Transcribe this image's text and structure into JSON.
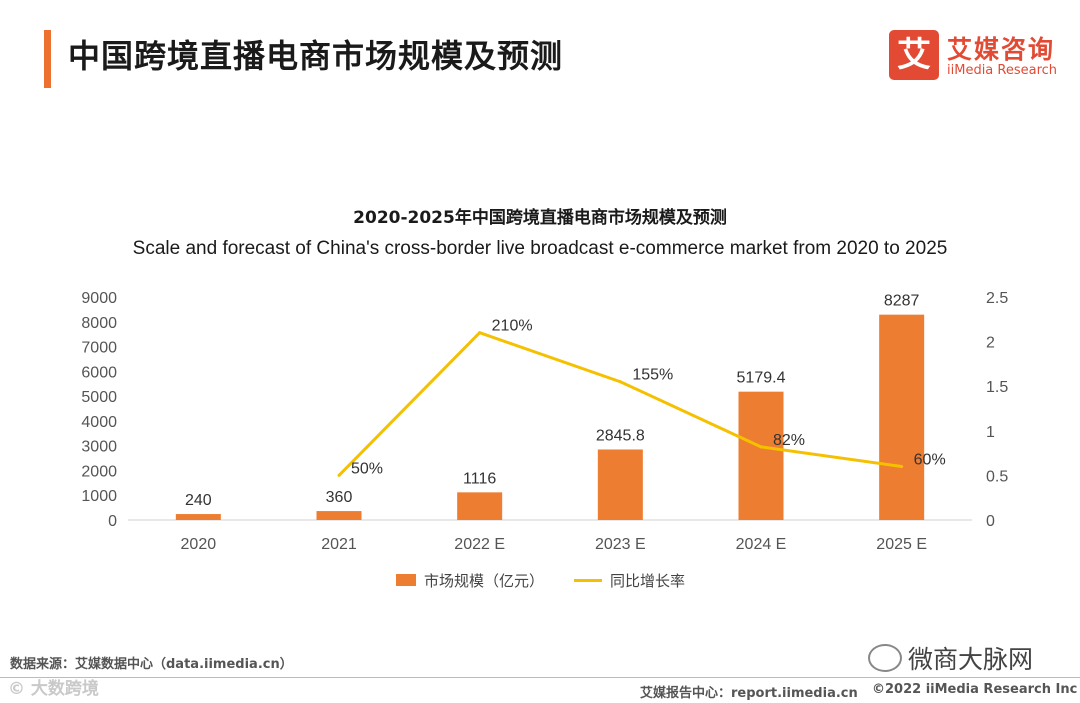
{
  "header": {
    "title": "中国跨境直播电商市场规模及预测",
    "accent_color": "#ed7031"
  },
  "logo": {
    "mark": "艾",
    "name_cn": "艾媒咨询",
    "name_en": "iiMedia Research",
    "color": "#e24a33"
  },
  "chart_data": {
    "type": "bar",
    "title": "2020-2025年中国跨境直播电商市场规模及预测",
    "subtitle": "Scale and forecast of China's cross-border live broadcast e-commerce market from 2020 to 2025",
    "categories": [
      "2020",
      "2021",
      "2022 E",
      "2023 E",
      "2024 E",
      "2025 E"
    ],
    "series": [
      {
        "name": "市场规模（亿元）",
        "type": "bar",
        "axis": "left",
        "color": "#ed7d31",
        "values": [
          240,
          360,
          1116,
          2845.8,
          5179.4,
          8287
        ],
        "labels": [
          "240",
          "360",
          "1116",
          "2845.8",
          "5179.4",
          "8287"
        ]
      },
      {
        "name": "同比增长率",
        "type": "line",
        "axis": "right",
        "color": "#f5c000",
        "values": [
          null,
          0.5,
          2.1,
          1.55,
          0.82,
          0.6
        ],
        "labels": [
          "",
          "50%",
          "210%",
          "155%",
          "82%",
          "60%"
        ]
      }
    ],
    "y_left": {
      "min": 0,
      "max": 9000,
      "ticks": [
        "0",
        "1000",
        "2000",
        "3000",
        "4000",
        "5000",
        "6000",
        "7000",
        "8000",
        "9000"
      ]
    },
    "y_right": {
      "min": 0,
      "max": 2.5,
      "ticks": [
        "0",
        "0.5",
        "1",
        "1.5",
        "2",
        "2.5"
      ]
    },
    "grid": false,
    "legend_position": "bottom"
  },
  "footer": {
    "source": "数据来源：艾媒数据中心（data.iimedia.cn）",
    "report_center": "艾媒报告中心：report.iimedia.cn",
    "copyright": "©2022  iiMedia Research  Inc",
    "watermark_left": "© 大数跨境",
    "watermark_right": "微商大脉网"
  }
}
